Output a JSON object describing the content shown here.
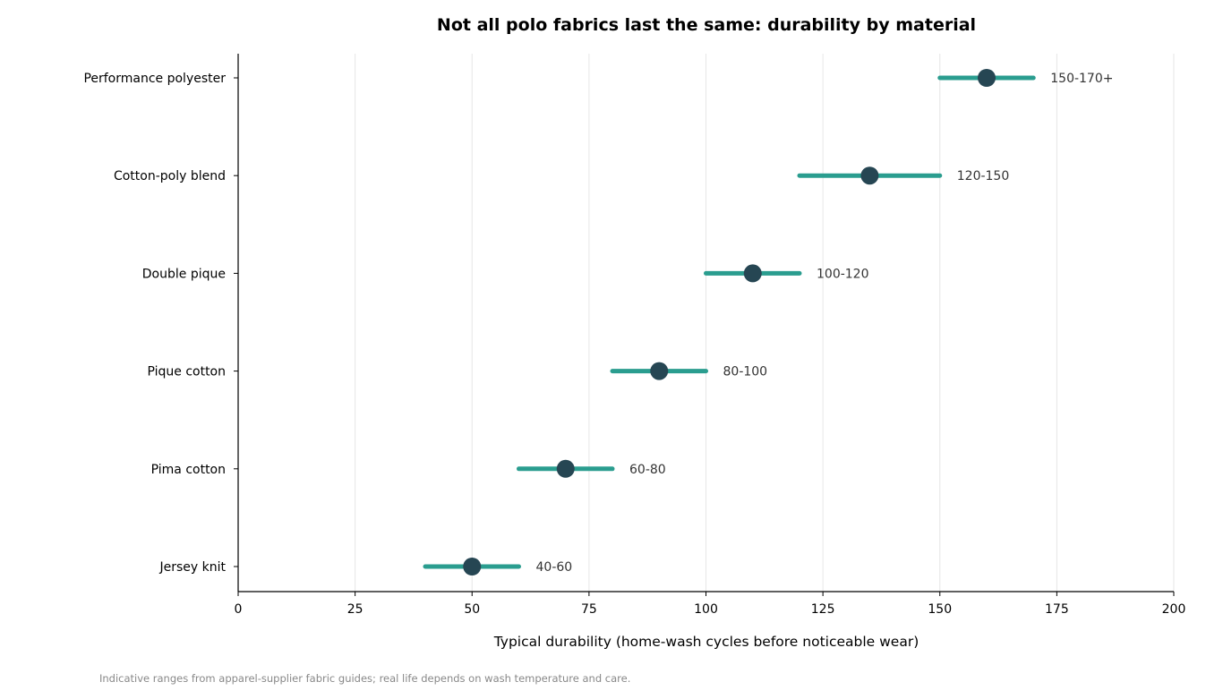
{
  "chart_data": {
    "type": "range-dot",
    "title": "Not all polo fabrics last the same: durability by material",
    "xlabel": "Typical durability (home-wash cycles before noticeable wear)",
    "ylabel": "",
    "xlim": [
      0,
      200
    ],
    "xticks": [
      0,
      25,
      50,
      75,
      100,
      125,
      150,
      175,
      200
    ],
    "grid": "vertical",
    "categories": [
      "Performance polyester",
      "Cotton-poly blend",
      "Double pique",
      "Pique cotton",
      "Pima cotton",
      "Jersey knit"
    ],
    "ranges": [
      {
        "low": 150,
        "high": 170,
        "label": "150-170+"
      },
      {
        "low": 120,
        "high": 150,
        "label": "120-150"
      },
      {
        "low": 100,
        "high": 120,
        "label": "100-120"
      },
      {
        "low": 80,
        "high": 100,
        "label": "80-100"
      },
      {
        "low": 60,
        "high": 80,
        "label": "60-80"
      },
      {
        "low": 40,
        "high": 60,
        "label": "40-60"
      }
    ],
    "midpoints": [
      160,
      135,
      110,
      90,
      70,
      50
    ],
    "colors": {
      "range": "#2a9d8f",
      "dot": "#264653",
      "grid": "#e6e6e6",
      "axis": "#000000"
    },
    "footnote": "Indicative ranges from apparel-supplier fabric guides; real life depends on wash temperature and care."
  }
}
